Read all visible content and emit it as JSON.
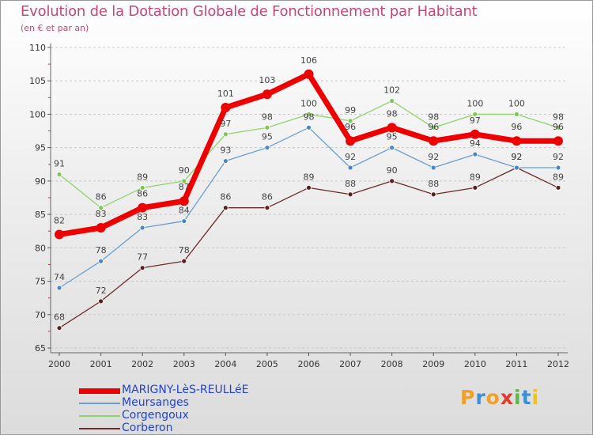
{
  "title": "Evolution de la Dotation Globale de Fonctionnement par Habitant",
  "subtitle": "(en € et par an)",
  "logo": {
    "text": "Proxiti",
    "letters": [
      "P",
      "r",
      "o",
      "x",
      "i",
      "t",
      "i"
    ],
    "colors": [
      "#f0a02a",
      "#3a8fd6",
      "#f0a02a",
      "#e23b2e",
      "#5db84a",
      "#3a8fd6",
      "#f0c020"
    ]
  },
  "chart_data": {
    "type": "line",
    "title": "Evolution de la Dotation Globale de Fonctionnement par Habitant",
    "subtitle": "(en € et par an)",
    "xlabel": "",
    "ylabel": "",
    "categories": [
      "2000",
      "2001",
      "2002",
      "2003",
      "2004",
      "2005",
      "2006",
      "2007",
      "2008",
      "2009",
      "2010",
      "2011",
      "2012"
    ],
    "ylim": [
      65,
      110
    ],
    "yticks": [
      "65",
      "70",
      "75",
      "80",
      "85",
      "90",
      "95",
      "100",
      "105",
      "110"
    ],
    "grid": "horizontal dashed",
    "legend": "bottom-left",
    "series": [
      {
        "name": "Corberon",
        "color": "#6b2b2b",
        "marker": "#5a1f1f",
        "width": 1.3,
        "values": [
          68,
          72,
          77,
          78,
          86,
          86,
          89,
          88,
          90,
          88,
          89,
          92,
          89
        ],
        "labels": [
          "68",
          "72",
          "77",
          "78",
          "86",
          "86",
          "89",
          "88",
          "90",
          "88",
          "89",
          "92",
          "89"
        ]
      },
      {
        "name": "Corgengoux",
        "color": "#8fd46a",
        "marker": "#7cc84e",
        "width": 1.3,
        "values": [
          91,
          86,
          89,
          90,
          97,
          98,
          100,
          99,
          102,
          98,
          100,
          100,
          98
        ],
        "labels": [
          "91",
          "86",
          "89",
          "90",
          "97",
          "98",
          "100",
          "99",
          "102",
          "98",
          "100",
          "100",
          "98"
        ]
      },
      {
        "name": "Meursanges",
        "color": "#6a9fd0",
        "marker": "#4a86c5",
        "width": 1.3,
        "values": [
          74,
          78,
          83,
          84,
          93,
          95,
          98,
          92,
          95,
          92,
          94,
          92,
          92
        ],
        "labels": [
          "74",
          "78",
          "83",
          "84",
          "93",
          "95",
          "98",
          "92",
          "95",
          "92",
          "94",
          "92",
          "92"
        ]
      },
      {
        "name": "MARIGNY-LèS-REULLéE",
        "color": "#ee0000",
        "marker": "#ee0000",
        "width": 7,
        "values": [
          82,
          83,
          86,
          87,
          101,
          103,
          106,
          96,
          98,
          96,
          97,
          96,
          96
        ],
        "labels": [
          "82",
          "83",
          "86",
          "87",
          "101",
          "103",
          "106",
          "96",
          "98",
          "96",
          "97",
          "96",
          "96"
        ]
      }
    ]
  },
  "legend": [
    {
      "name": "MARIGNY-LèS-REULLéE",
      "color": "#ee0000",
      "text_color": "#2244cc",
      "thickness": 7
    },
    {
      "name": "Meursanges",
      "color": "#6a9fd0",
      "text_color": "#2244cc",
      "thickness": 2
    },
    {
      "name": "Corgengoux",
      "color": "#8fd46a",
      "text_color": "#2244cc",
      "thickness": 2
    },
    {
      "name": "Corberon",
      "color": "#6b2b2b",
      "text_color": "#2244cc",
      "thickness": 2
    }
  ]
}
